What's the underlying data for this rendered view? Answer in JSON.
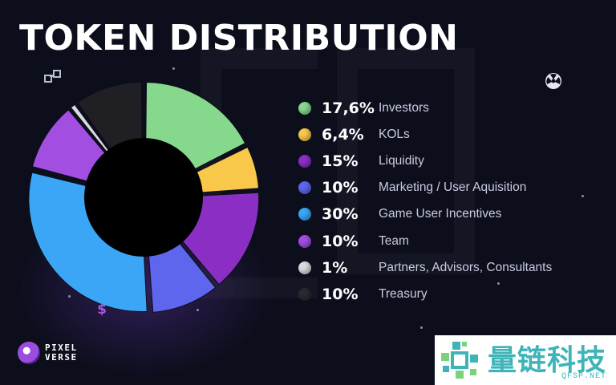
{
  "title": "TOKEN DISTRIBUTION",
  "chart_data": {
    "type": "pie",
    "title": "TOKEN DISTRIBUTION",
    "donut": true,
    "legend_position": "right",
    "slices": [
      {
        "label": "Investors",
        "value": 17.6,
        "value_label": "17,6%",
        "color": "#86d98c"
      },
      {
        "label": "KOLs",
        "value": 6.4,
        "value_label": "6,4%",
        "color": "#f9c84a"
      },
      {
        "label": "Liquidity",
        "value": 15,
        "value_label": "15%",
        "color": "#8b2fc4"
      },
      {
        "label": "Marketing / User Aquisition",
        "value": 10,
        "value_label": "10%",
        "color": "#5d66ec"
      },
      {
        "label": "Game User Incentives",
        "value": 30,
        "value_label": "30%",
        "color": "#3aa6f5"
      },
      {
        "label": "Team",
        "value": 10,
        "value_label": "10%",
        "color": "#a24ee0"
      },
      {
        "label": "Partners, Advisors, Consultants",
        "value": 1,
        "value_label": "1%",
        "color": "#d9d9de"
      },
      {
        "label": "Treasury",
        "value": 10,
        "value_label": "10%",
        "color": "#1f1f24"
      }
    ]
  },
  "brand": {
    "line1": "PIXEL",
    "line2": "VERSE"
  },
  "watermark": {
    "cn": "量链科技",
    "en": "QFSP.NET"
  },
  "icons": [
    "link-icon",
    "radiation-icon",
    "dollar-icon"
  ]
}
